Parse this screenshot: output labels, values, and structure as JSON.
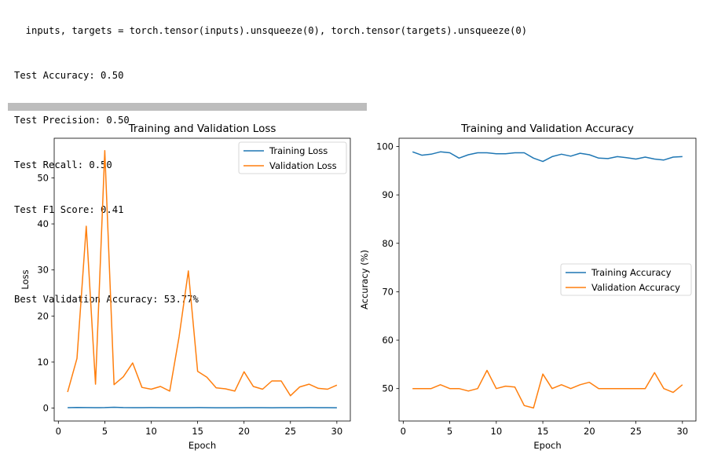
{
  "console": {
    "lines": [
      "  inputs, targets = torch.tensor(inputs).unsqueeze(0), torch.tensor(targets).unsqueeze(0)",
      "Test Accuracy: 0.50",
      "Test Precision: 0.50",
      "Test Recall: 0.50",
      "Test F1 Score: 0.41",
      "",
      "Best Validation Accuracy: 53.77%"
    ],
    "progress": 1.0
  },
  "colors": {
    "training": "#1f77b4",
    "validation": "#ff7f0e"
  },
  "chart_data": [
    {
      "type": "line",
      "title": "Training and Validation Loss",
      "xlabel": "Epoch",
      "ylabel": "Loss",
      "xlim": [
        -0.45,
        31.45
      ],
      "ylim": [
        -2.8,
        58.6
      ],
      "xticks": [
        0,
        5,
        10,
        15,
        20,
        25,
        30
      ],
      "yticks": [
        0,
        10,
        20,
        30,
        40,
        50
      ],
      "grid": false,
      "legend_position": "top-right",
      "x": [
        1,
        2,
        3,
        4,
        5,
        6,
        7,
        8,
        9,
        10,
        11,
        12,
        13,
        14,
        15,
        16,
        17,
        18,
        19,
        20,
        21,
        22,
        23,
        24,
        25,
        26,
        27,
        28,
        29,
        30
      ],
      "series": [
        {
          "name": "Training Loss",
          "color": "#1f77b4",
          "values": [
            0.1,
            0.15,
            0.12,
            0.1,
            0.12,
            0.18,
            0.12,
            0.1,
            0.1,
            0.11,
            0.1,
            0.1,
            0.1,
            0.1,
            0.12,
            0.1,
            0.09,
            0.08,
            0.08,
            0.1,
            0.1,
            0.1,
            0.09,
            0.1,
            0.1,
            0.1,
            0.12,
            0.1,
            0.1,
            0.08
          ]
        },
        {
          "name": "Validation Loss",
          "color": "#ff7f0e",
          "values": [
            3.5,
            10.8,
            39.5,
            5.2,
            55.9,
            5.1,
            6.8,
            9.8,
            4.5,
            4.1,
            4.7,
            3.7,
            15.5,
            29.8,
            8.0,
            6.7,
            4.4,
            4.2,
            3.7,
            7.9,
            4.7,
            4.1,
            5.9,
            5.9,
            2.7,
            4.6,
            5.2,
            4.3,
            4.1,
            5.0
          ]
        }
      ]
    },
    {
      "type": "line",
      "title": "Training and Validation Accuracy",
      "xlabel": "Epoch",
      "ylabel": "Accuracy (%)",
      "xlim": [
        -0.45,
        31.45
      ],
      "ylim": [
        43.3,
        101.7
      ],
      "xticks": [
        0,
        5,
        10,
        15,
        20,
        25,
        30
      ],
      "yticks": [
        50,
        60,
        70,
        80,
        90,
        100
      ],
      "grid": false,
      "legend_position": "center-right",
      "x": [
        1,
        2,
        3,
        4,
        5,
        6,
        7,
        8,
        9,
        10,
        11,
        12,
        13,
        14,
        15,
        16,
        17,
        18,
        19,
        20,
        21,
        22,
        23,
        24,
        25,
        26,
        27,
        28,
        29,
        30
      ],
      "series": [
        {
          "name": "Training Accuracy",
          "color": "#1f77b4",
          "values": [
            98.9,
            98.2,
            98.4,
            98.9,
            98.7,
            97.6,
            98.3,
            98.7,
            98.7,
            98.5,
            98.5,
            98.7,
            98.7,
            97.6,
            96.9,
            97.9,
            98.4,
            98.0,
            98.6,
            98.3,
            97.6,
            97.5,
            97.9,
            97.7,
            97.4,
            97.8,
            97.4,
            97.2,
            97.8,
            97.9
          ]
        },
        {
          "name": "Validation Accuracy",
          "color": "#ff7f0e",
          "values": [
            50.0,
            50.0,
            50.0,
            50.8,
            50.0,
            50.0,
            49.5,
            50.0,
            53.77,
            50.0,
            50.5,
            50.3,
            46.5,
            46.0,
            53.0,
            50.0,
            50.8,
            50.0,
            50.8,
            51.3,
            50.0,
            50.0,
            50.0,
            50.0,
            50.0,
            50.0,
            53.3,
            50.0,
            49.2,
            50.8
          ]
        }
      ]
    }
  ]
}
